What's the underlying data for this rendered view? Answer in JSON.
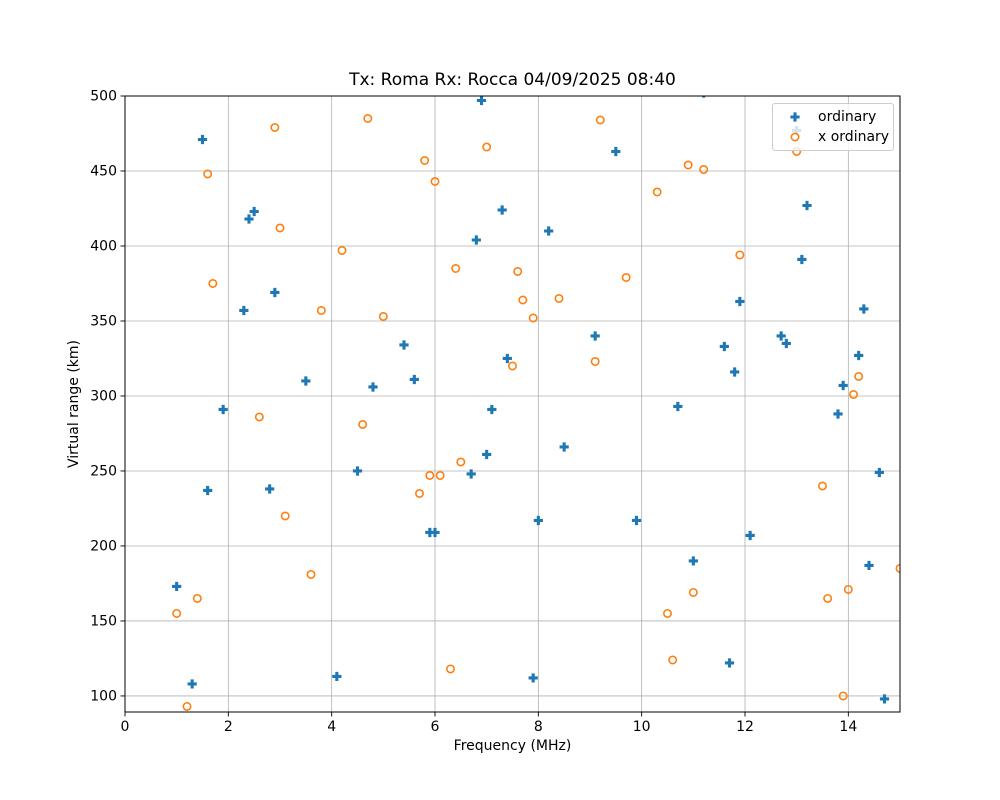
{
  "chart_data": {
    "type": "scatter",
    "title": "Tx: Roma Rx: Rocca 04/09/2025 08:40",
    "xlabel": "Frequency (MHz)",
    "ylabel": "Virtual range (km)",
    "xlim": [
      0,
      15
    ],
    "ylim": [
      89.3,
      500
    ],
    "xticks": [
      0,
      2,
      4,
      6,
      8,
      10,
      12,
      14
    ],
    "yticks": [
      100,
      150,
      200,
      250,
      300,
      350,
      400,
      450,
      500
    ],
    "grid": true,
    "grid_color": "#b0b0b0",
    "axis_color": "#000000",
    "legend_position": "upper right",
    "series": [
      {
        "name": "ordinary",
        "marker": "filled-plus",
        "color": "#1f77b4",
        "points": [
          [
            1.0,
            173
          ],
          [
            1.3,
            108
          ],
          [
            1.5,
            471
          ],
          [
            1.6,
            237
          ],
          [
            1.9,
            291
          ],
          [
            2.3,
            357
          ],
          [
            2.4,
            418
          ],
          [
            2.5,
            423
          ],
          [
            2.8,
            238
          ],
          [
            2.9,
            369
          ],
          [
            3.5,
            310
          ],
          [
            4.1,
            113
          ],
          [
            4.5,
            250
          ],
          [
            4.8,
            306
          ],
          [
            5.4,
            334
          ],
          [
            5.6,
            311
          ],
          [
            5.9,
            209
          ],
          [
            6.0,
            209
          ],
          [
            6.7,
            248
          ],
          [
            6.8,
            404
          ],
          [
            6.9,
            497
          ],
          [
            7.0,
            261
          ],
          [
            7.1,
            291
          ],
          [
            7.3,
            424
          ],
          [
            7.4,
            325
          ],
          [
            7.9,
            112
          ],
          [
            8.0,
            217
          ],
          [
            8.2,
            410
          ],
          [
            8.5,
            266
          ],
          [
            9.1,
            340
          ],
          [
            9.5,
            463
          ],
          [
            9.9,
            217
          ],
          [
            10.7,
            293
          ],
          [
            11.0,
            190
          ],
          [
            11.2,
            502
          ],
          [
            11.6,
            333
          ],
          [
            11.7,
            122
          ],
          [
            11.8,
            316
          ],
          [
            11.9,
            363
          ],
          [
            12.1,
            207
          ],
          [
            12.7,
            340
          ],
          [
            12.8,
            335
          ],
          [
            13.0,
            477
          ],
          [
            13.1,
            391
          ],
          [
            13.2,
            427
          ],
          [
            13.8,
            288
          ],
          [
            13.9,
            307
          ],
          [
            14.2,
            327
          ],
          [
            14.3,
            358
          ],
          [
            14.4,
            187
          ],
          [
            14.6,
            249
          ],
          [
            14.7,
            98
          ]
        ]
      },
      {
        "name": "x ordinary",
        "marker": "open-circle",
        "color": "#ff7f0e",
        "points": [
          [
            1.0,
            155
          ],
          [
            1.2,
            93
          ],
          [
            1.4,
            165
          ],
          [
            1.6,
            448
          ],
          [
            1.7,
            375
          ],
          [
            2.6,
            286
          ],
          [
            2.9,
            479
          ],
          [
            3.0,
            412
          ],
          [
            3.1,
            220
          ],
          [
            3.6,
            181
          ],
          [
            3.8,
            357
          ],
          [
            4.2,
            397
          ],
          [
            4.6,
            281
          ],
          [
            4.7,
            485
          ],
          [
            5.0,
            353
          ],
          [
            5.7,
            235
          ],
          [
            5.8,
            457
          ],
          [
            5.9,
            247
          ],
          [
            6.0,
            443
          ],
          [
            6.1,
            247
          ],
          [
            6.3,
            118
          ],
          [
            6.4,
            385
          ],
          [
            6.5,
            256
          ],
          [
            7.0,
            466
          ],
          [
            7.5,
            320
          ],
          [
            7.6,
            383
          ],
          [
            7.7,
            364
          ],
          [
            7.9,
            352
          ],
          [
            8.4,
            365
          ],
          [
            9.1,
            323
          ],
          [
            9.2,
            484
          ],
          [
            9.7,
            379
          ],
          [
            10.3,
            436
          ],
          [
            10.5,
            155
          ],
          [
            10.6,
            124
          ],
          [
            10.9,
            454
          ],
          [
            11.0,
            169
          ],
          [
            11.2,
            451
          ],
          [
            11.9,
            394
          ],
          [
            13.0,
            463
          ],
          [
            13.5,
            240
          ],
          [
            13.6,
            165
          ],
          [
            13.9,
            100
          ],
          [
            14.0,
            171
          ],
          [
            14.1,
            301
          ],
          [
            14.2,
            313
          ],
          [
            15.0,
            185
          ]
        ]
      }
    ]
  }
}
